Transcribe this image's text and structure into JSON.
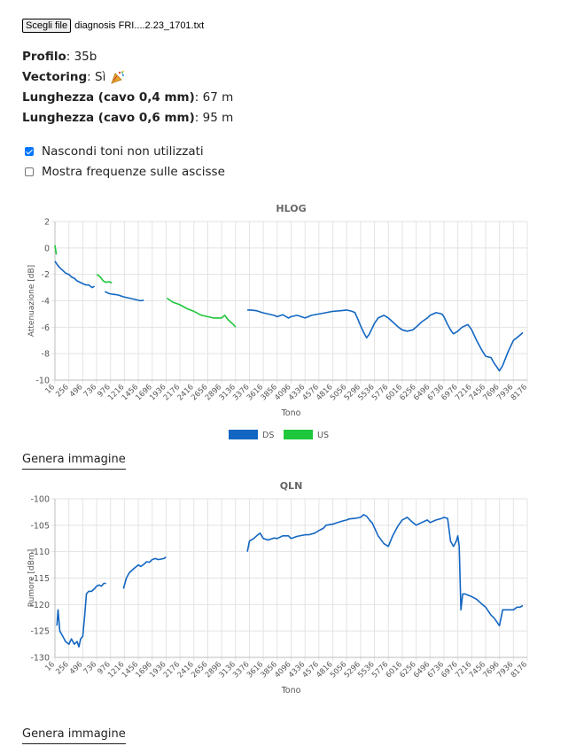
{
  "file": {
    "button_label": "Scegli file",
    "file_name": "diagnosis FRI....2.23_1701.txt"
  },
  "info": {
    "profilo_label": "Profilo",
    "profilo_value": "35b",
    "vectoring_label": "Vectoring",
    "vectoring_value": "Sì",
    "vectoring_icon": "party-popper-icon",
    "len04_label": "Lunghezza (cavo 0,4 mm)",
    "len04_value": "67 m",
    "len06_label": "Lunghezza (cavo 0,6 mm)",
    "len06_value": "95 m"
  },
  "options": {
    "hide_unused": {
      "label": "Nascondi toni non utilizzati",
      "checked": true
    },
    "show_freq": {
      "label": "Mostra frequenze sulle ascisse",
      "checked": false
    }
  },
  "colors": {
    "ds": "#1266c2",
    "us": "#1ec73c",
    "grid": "#e3e3e3",
    "axis": "#bdbdbd"
  },
  "generate_label_1": "Genera immagine",
  "generate_label_2": "Genera immagine",
  "chart_data": [
    {
      "type": "line",
      "title": "HLOG",
      "xlabel": "Tono",
      "ylabel": "Attenuazione [dB]",
      "ylim": [
        -10,
        2
      ],
      "yticks": [
        2,
        0,
        -2,
        -4,
        -6,
        -8,
        -10
      ],
      "xlim": [
        16,
        8176
      ],
      "xticks": [
        16,
        256,
        496,
        736,
        976,
        1216,
        1456,
        1696,
        1936,
        2176,
        2416,
        2656,
        2896,
        3136,
        3376,
        3616,
        3856,
        4096,
        4336,
        4576,
        4816,
        5056,
        5296,
        5536,
        5776,
        6016,
        6256,
        6496,
        6736,
        6976,
        7216,
        7456,
        7696,
        7936,
        8176
      ],
      "grid": true,
      "legend_position": "bottom",
      "series": [
        {
          "name": "DS",
          "segments": [
            [
              [
                16,
                -1.0
              ],
              [
                60,
                -1.3
              ],
              [
                100,
                -1.5
              ],
              [
                150,
                -1.7
              ],
              [
                200,
                -1.9
              ],
              [
                256,
                -2.0
              ],
              [
                300,
                -2.2
              ],
              [
                350,
                -2.3
              ],
              [
                400,
                -2.5
              ],
              [
                450,
                -2.6
              ],
              [
                496,
                -2.7
              ],
              [
                550,
                -2.8
              ],
              [
                600,
                -2.8
              ],
              [
                660,
                -3.0
              ],
              [
                700,
                -2.9
              ]
            ],
            [
              [
                880,
                -3.3
              ],
              [
                950,
                -3.45
              ],
              [
                1000,
                -3.5
              ],
              [
                1100,
                -3.55
              ],
              [
                1200,
                -3.7
              ],
              [
                1300,
                -3.8
              ],
              [
                1400,
                -3.9
              ],
              [
                1500,
                -4.0
              ],
              [
                1550,
                -3.95
              ]
            ],
            [
              [
                3340,
                -4.7
              ],
              [
                3400,
                -4.7
              ],
              [
                3500,
                -4.75
              ],
              [
                3600,
                -4.9
              ],
              [
                3700,
                -5.0
              ],
              [
                3800,
                -5.1
              ],
              [
                3856,
                -5.2
              ],
              [
                3950,
                -5.05
              ],
              [
                4050,
                -5.3
              ],
              [
                4096,
                -5.2
              ],
              [
                4200,
                -5.1
              ],
              [
                4336,
                -5.3
              ],
              [
                4450,
                -5.1
              ],
              [
                4576,
                -5.0
              ],
              [
                4700,
                -4.9
              ],
              [
                4816,
                -4.8
              ],
              [
                4950,
                -4.75
              ],
              [
                5056,
                -4.7
              ],
              [
                5150,
                -4.8
              ],
              [
                5200,
                -4.9
              ],
              [
                5250,
                -5.4
              ],
              [
                5296,
                -5.9
              ],
              [
                5350,
                -6.4
              ],
              [
                5400,
                -6.8
              ],
              [
                5450,
                -6.5
              ],
              [
                5536,
                -5.7
              ],
              [
                5600,
                -5.3
              ],
              [
                5700,
                -5.1
              ],
              [
                5776,
                -5.3
              ],
              [
                5850,
                -5.6
              ],
              [
                5950,
                -6.0
              ],
              [
                6016,
                -6.2
              ],
              [
                6100,
                -6.3
              ],
              [
                6200,
                -6.2
              ],
              [
                6256,
                -6.0
              ],
              [
                6350,
                -5.6
              ],
              [
                6450,
                -5.3
              ],
              [
                6496,
                -5.1
              ],
              [
                6600,
                -4.9
              ],
              [
                6700,
                -5.0
              ],
              [
                6736,
                -5.2
              ],
              [
                6800,
                -5.8
              ],
              [
                6850,
                -6.2
              ],
              [
                6900,
                -6.5
              ],
              [
                6976,
                -6.3
              ],
              [
                7050,
                -6.0
              ],
              [
                7150,
                -5.8
              ],
              [
                7216,
                -6.2
              ],
              [
                7300,
                -7.0
              ],
              [
                7400,
                -7.8
              ],
              [
                7456,
                -8.2
              ],
              [
                7550,
                -8.3
              ],
              [
                7600,
                -8.7
              ],
              [
                7696,
                -9.3
              ],
              [
                7750,
                -8.9
              ],
              [
                7850,
                -7.8
              ],
              [
                7936,
                -7.0
              ],
              [
                8050,
                -6.6
              ],
              [
                8100,
                -6.4
              ]
            ]
          ]
        },
        {
          "name": "US",
          "segments": [
            [
              [
                16,
                0.2
              ],
              [
                40,
                -0.5
              ]
            ],
            [
              [
                740,
                -2.0
              ],
              [
                800,
                -2.2
              ],
              [
                850,
                -2.5
              ],
              [
                900,
                -2.6
              ],
              [
                950,
                -2.55
              ],
              [
                1000,
                -2.65
              ]
            ],
            [
              [
                1950,
                -3.8
              ],
              [
                2050,
                -4.1
              ],
              [
                2176,
                -4.3
              ],
              [
                2300,
                -4.6
              ],
              [
                2416,
                -4.8
              ],
              [
                2550,
                -5.1
              ],
              [
                2656,
                -5.2
              ],
              [
                2750,
                -5.3
              ],
              [
                2896,
                -5.3
              ],
              [
                2950,
                -5.1
              ],
              [
                3000,
                -5.4
              ],
              [
                3050,
                -5.6
              ],
              [
                3100,
                -5.8
              ],
              [
                3136,
                -6.0
              ]
            ]
          ]
        }
      ]
    },
    {
      "type": "line",
      "title": "QLN",
      "xlabel": "Tono",
      "ylabel": "Rumore [dBm]",
      "ylim": [
        -130,
        -100
      ],
      "yticks": [
        -100,
        -105,
        -110,
        -115,
        -120,
        -125,
        -130
      ],
      "xlim": [
        16,
        8176
      ],
      "xticks": [
        16,
        256,
        496,
        736,
        976,
        1216,
        1456,
        1696,
        1936,
        2176,
        2416,
        2656,
        2896,
        3136,
        3376,
        3616,
        3856,
        4096,
        4336,
        4576,
        4816,
        5056,
        5296,
        5536,
        5776,
        6016,
        6256,
        6496,
        6736,
        6976,
        7216,
        7456,
        7696,
        7936,
        8176
      ],
      "grid": true,
      "series": [
        {
          "name": "DS",
          "segments": [
            [
              [
                50,
                -124
              ],
              [
                70,
                -121
              ],
              [
                100,
                -125
              ],
              [
                150,
                -126
              ],
              [
                200,
                -127
              ],
              [
                256,
                -127.5
              ],
              [
                300,
                -126.5
              ],
              [
                350,
                -127.5
              ],
              [
                400,
                -127
              ],
              [
                430,
                -128
              ],
              [
                460,
                -126.5
              ],
              [
                496,
                -126
              ],
              [
                530,
                -122
              ],
              [
                560,
                -118
              ],
              [
                600,
                -117.5
              ],
              [
                650,
                -117.5
              ],
              [
                700,
                -117
              ],
              [
                736,
                -116.5
              ],
              [
                780,
                -116.3
              ],
              [
                820,
                -116.5
              ],
              [
                860,
                -116
              ],
              [
                900,
                -116
              ]
            ],
            [
              [
                1200,
                -117
              ],
              [
                1250,
                -115
              ],
              [
                1300,
                -114
              ],
              [
                1350,
                -113.5
              ],
              [
                1400,
                -113
              ],
              [
                1456,
                -112.5
              ],
              [
                1500,
                -112.8
              ],
              [
                1550,
                -112.4
              ],
              [
                1600,
                -111.9
              ],
              [
                1650,
                -112
              ],
              [
                1696,
                -111.5
              ],
              [
                1750,
                -111.3
              ],
              [
                1800,
                -111.5
              ],
              [
                1850,
                -111.4
              ],
              [
                1900,
                -111.3
              ],
              [
                1936,
                -111
              ]
            ],
            [
              [
                3340,
                -110
              ],
              [
                3376,
                -108
              ],
              [
                3450,
                -107.5
              ],
              [
                3500,
                -107
              ],
              [
                3560,
                -106.5
              ],
              [
                3616,
                -107.5
              ],
              [
                3700,
                -107.8
              ],
              [
                3800,
                -107.4
              ],
              [
                3856,
                -107.5
              ],
              [
                3950,
                -107
              ],
              [
                4050,
                -107
              ],
              [
                4096,
                -107.5
              ],
              [
                4200,
                -107.1
              ],
              [
                4336,
                -106.8
              ],
              [
                4400,
                -106.8
              ],
              [
                4500,
                -106.5
              ],
              [
                4576,
                -106
              ],
              [
                4650,
                -105.6
              ],
              [
                4700,
                -105
              ],
              [
                4816,
                -104.8
              ],
              [
                4900,
                -104.5
              ],
              [
                4980,
                -104.2
              ],
              [
                5056,
                -104
              ],
              [
                5100,
                -103.8
              ],
              [
                5200,
                -103.7
              ],
              [
                5296,
                -103.5
              ],
              [
                5350,
                -103
              ],
              [
                5400,
                -103.3
              ],
              [
                5450,
                -104
              ],
              [
                5500,
                -104.6
              ],
              [
                5536,
                -105.5
              ],
              [
                5600,
                -107
              ],
              [
                5700,
                -108.5
              ],
              [
                5776,
                -109
              ],
              [
                5850,
                -107
              ],
              [
                5950,
                -105
              ],
              [
                6016,
                -104
              ],
              [
                6100,
                -103.5
              ],
              [
                6200,
                -104.5
              ],
              [
                6256,
                -105
              ],
              [
                6350,
                -104.5
              ],
              [
                6450,
                -104
              ],
              [
                6496,
                -104.5
              ],
              [
                6600,
                -104
              ],
              [
                6700,
                -103.7
              ],
              [
                6736,
                -103.5
              ],
              [
                6800,
                -103.7
              ],
              [
                6850,
                -108
              ],
              [
                6900,
                -109
              ],
              [
                6950,
                -108
              ],
              [
                6976,
                -107
              ],
              [
                7000,
                -109
              ],
              [
                7030,
                -121
              ],
              [
                7060,
                -118
              ],
              [
                7100,
                -118
              ],
              [
                7216,
                -118.5
              ],
              [
                7300,
                -119
              ],
              [
                7400,
                -120
              ],
              [
                7456,
                -120.5
              ],
              [
                7550,
                -122
              ],
              [
                7600,
                -122.5
              ],
              [
                7696,
                -124
              ],
              [
                7750,
                -121
              ],
              [
                7850,
                -121
              ],
              [
                7936,
                -121
              ],
              [
                8000,
                -120.5
              ],
              [
                8050,
                -120.5
              ],
              [
                8100,
                -120.2
              ]
            ]
          ]
        }
      ]
    }
  ]
}
